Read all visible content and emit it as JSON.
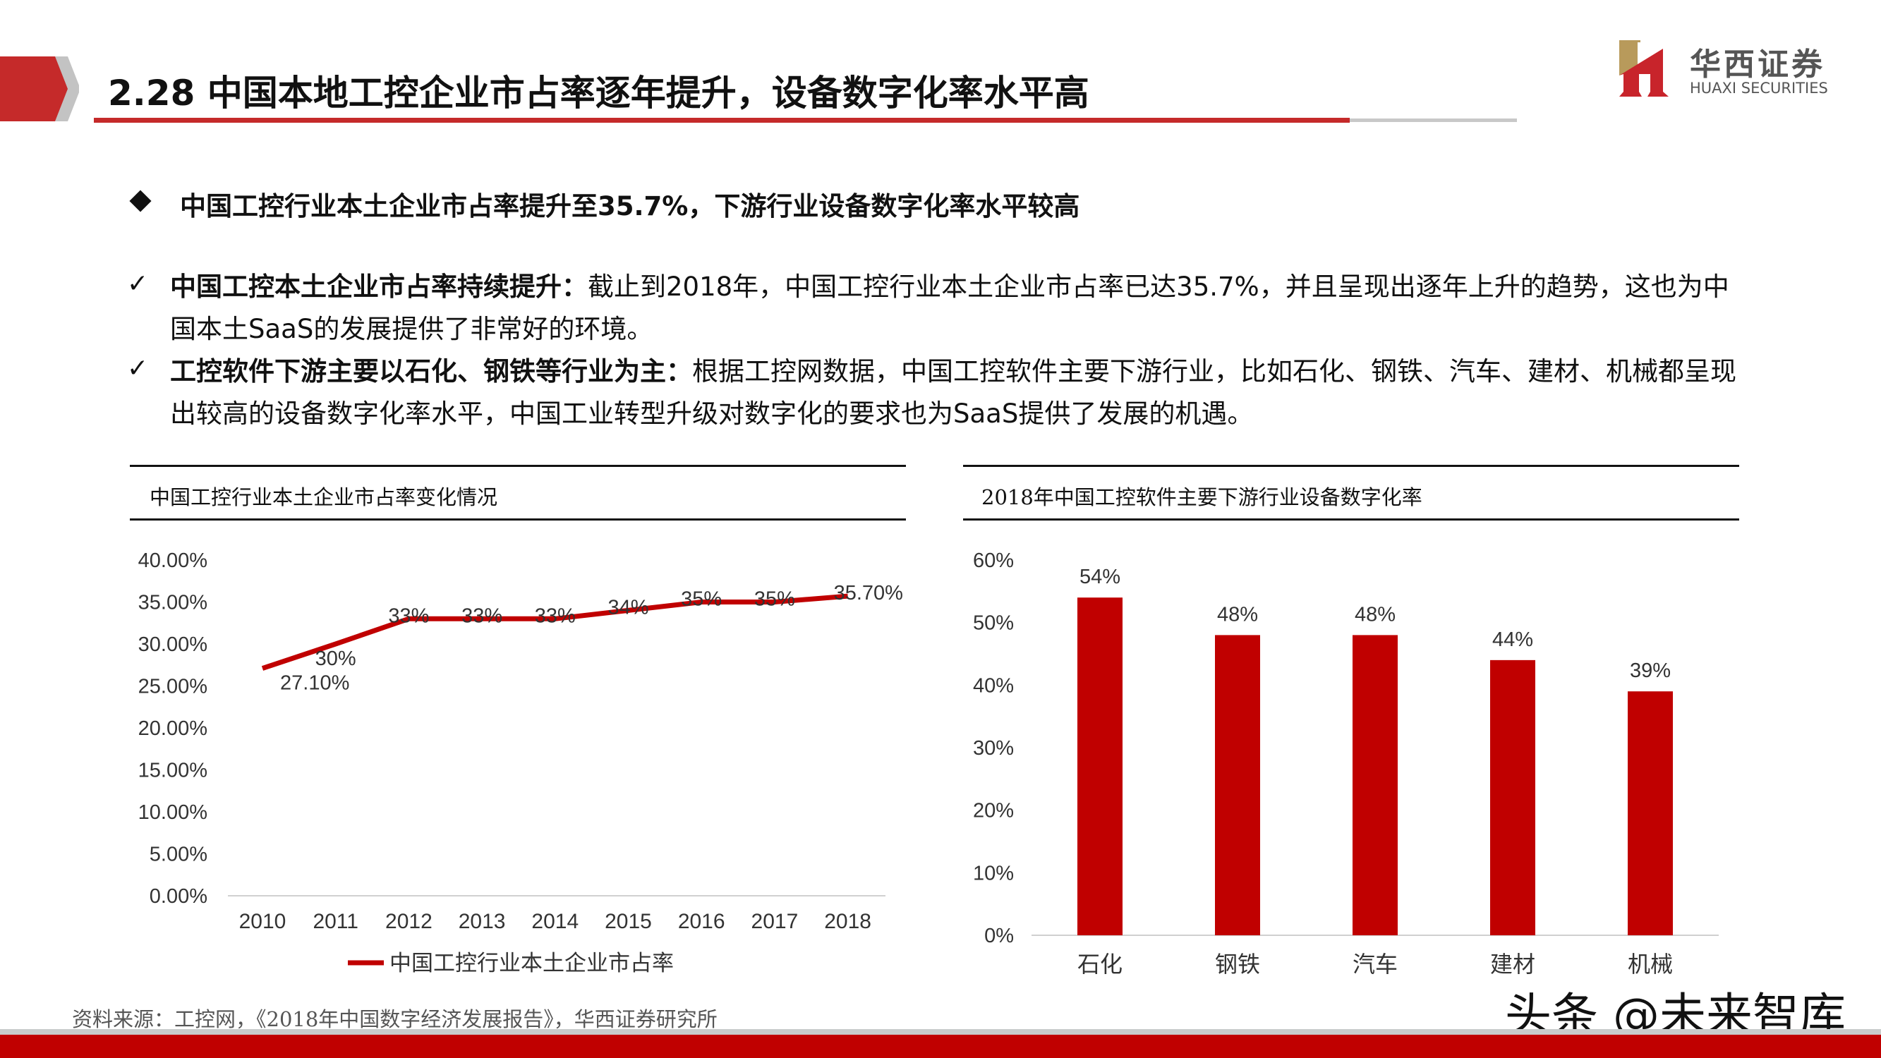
{
  "header": {
    "title": "2.28 中国本地工控企业市占率逐年提升，设备数字化率水平高",
    "logo_cn": "华西证券",
    "logo_en": "HUAXI SECURITIES",
    "accent": "#C00000"
  },
  "heading": "中国工控行业本土企业市占率提升至35.7%，下游行业设备数字化率水平较高",
  "points": [
    {
      "bold": "中国工控本土企业市占率持续提升：",
      "text": "截止到2018年，中国工控行业本土企业市占率已达35.7%，并且呈现出逐年上升的趋势，这也为中国本土SaaS的发展提供了非常好的环境。"
    },
    {
      "bold": "工控软件下游主要以石化、钢铁等行业为主：",
      "text": "根据工控网数据，中国工控软件主要下游行业，比如石化、钢铁、汽车、建材、机械都呈现出较高的设备数字化率水平，中国工业转型升级对数字化的要求也为SaaS提供了发展的机遇。"
    }
  ],
  "chart_data": [
    {
      "type": "line",
      "title": "中国工控行业本土企业市占率变化情况",
      "x": [
        "2010",
        "2011",
        "2012",
        "2013",
        "2014",
        "2015",
        "2016",
        "2017",
        "2018"
      ],
      "series": [
        {
          "name": "中国工控行业本土企业市占率",
          "values": [
            27.1,
            30,
            33,
            33,
            33,
            34,
            35,
            35,
            35.7
          ],
          "labels": [
            "27.10%",
            "30%",
            "33%",
            "33%",
            "33%",
            "34%",
            "35%",
            "35%",
            "35.70%"
          ],
          "color": "#C00000"
        }
      ],
      "ylim": [
        0,
        40
      ],
      "yticks": [
        "0.00%",
        "5.00%",
        "10.00%",
        "15.00%",
        "20.00%",
        "25.00%",
        "30.00%",
        "35.00%",
        "40.00%"
      ],
      "legend": "bottom"
    },
    {
      "type": "bar",
      "title": "2018年中国工控软件主要下游行业设备数字化率",
      "categories": [
        "石化",
        "钢铁",
        "汽车",
        "建材",
        "机械"
      ],
      "values": [
        54,
        48,
        48,
        44,
        39
      ],
      "labels": [
        "54%",
        "48%",
        "48%",
        "44%",
        "39%"
      ],
      "ylim": [
        0,
        60
      ],
      "yticks": [
        "0%",
        "10%",
        "20%",
        "30%",
        "40%",
        "50%",
        "60%"
      ],
      "color": "#C00000"
    }
  ],
  "source": "资料来源：工控网，《2018年中国数字经济发展报告》，华西证券研究所",
  "watermark": "头条 @未来智库"
}
